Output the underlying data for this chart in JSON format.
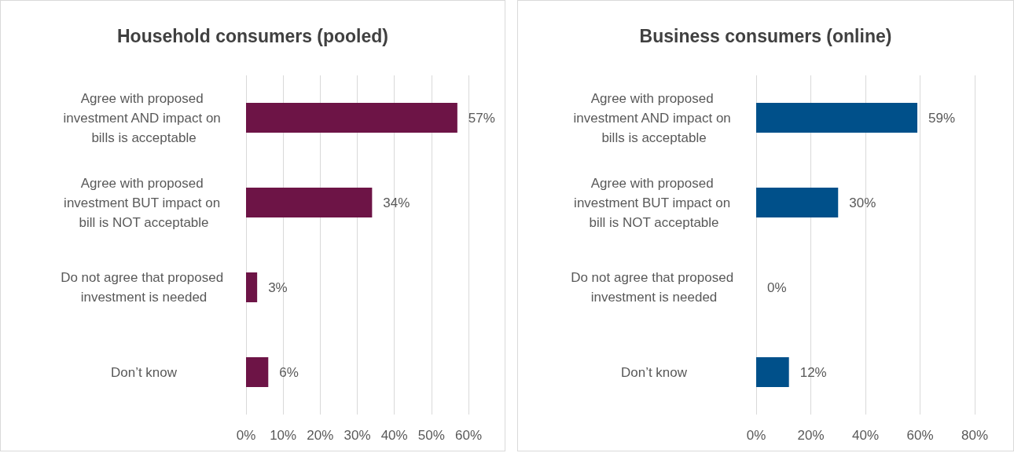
{
  "chart_data": [
    {
      "type": "bar",
      "orientation": "horizontal",
      "title": "Household consumers (pooled)",
      "categories": [
        "Agree with proposed investment AND impact on bills is acceptable",
        "Agree with proposed investment BUT impact on bill is NOT acceptable",
        "Do not agree that proposed investment is needed",
        "Don’t know"
      ],
      "values": [
        57,
        34,
        3,
        6
      ],
      "value_labels": [
        "57%",
        "34%",
        "3%",
        "6%"
      ],
      "color": "#6d1446",
      "xlim": [
        0,
        60
      ],
      "xticks": [
        {
          "value": 0,
          "label": "0%"
        },
        {
          "value": 10,
          "label": "10%"
        },
        {
          "value": 20,
          "label": "20%"
        },
        {
          "value": 30,
          "label": "30%"
        },
        {
          "value": 40,
          "label": "40%"
        },
        {
          "value": 50,
          "label": "50%"
        },
        {
          "value": 60,
          "label": "60%"
        }
      ],
      "grid": "x"
    },
    {
      "type": "bar",
      "orientation": "horizontal",
      "title": "Business consumers (online)",
      "categories": [
        "Agree with proposed investment AND impact on bills is acceptable",
        "Agree with proposed investment BUT impact on bill is NOT acceptable",
        "Do not agree that proposed investment is needed",
        "Don’t know"
      ],
      "values": [
        59,
        30,
        0,
        12
      ],
      "value_labels": [
        "59%",
        "30%",
        "0%",
        "12%"
      ],
      "color": "#00508a",
      "xlim": [
        0,
        80
      ],
      "xticks": [
        {
          "value": 0,
          "label": "0%"
        },
        {
          "value": 20,
          "label": "20%"
        },
        {
          "value": 40,
          "label": "40%"
        },
        {
          "value": 60,
          "label": "60%"
        },
        {
          "value": 80,
          "label": "80%"
        }
      ],
      "grid": "x"
    }
  ]
}
